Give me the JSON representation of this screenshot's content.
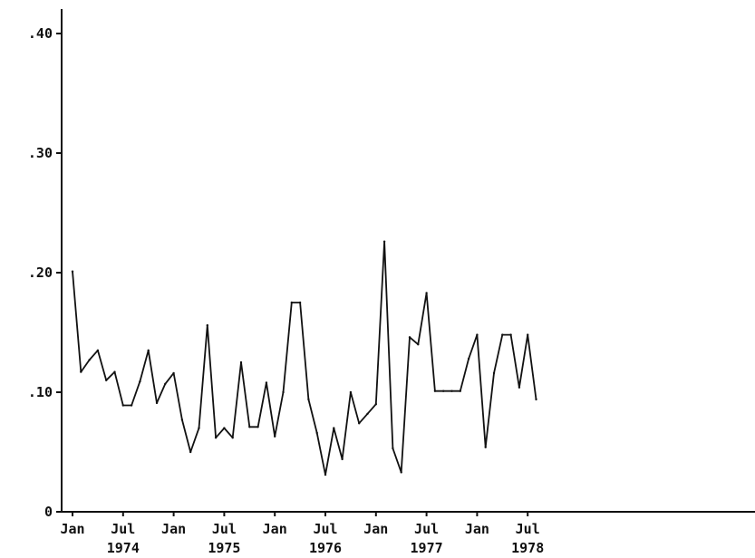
{
  "chart_data": {
    "type": "line",
    "title": "",
    "xlabel": "",
    "ylabel": "",
    "ylim": [
      0,
      0.42
    ],
    "grid": false,
    "legend": "none",
    "y_ticks": [
      {
        "value": 0,
        "label": "0"
      },
      {
        "value": 0.1,
        "label": ".10"
      },
      {
        "value": 0.2,
        "label": ".20"
      },
      {
        "value": 0.3,
        "label": ".30"
      },
      {
        "value": 0.4,
        "label": ".40"
      }
    ],
    "x_ticks": [
      {
        "x": "1974-01",
        "label": "Jan",
        "year": ""
      },
      {
        "x": "1974-07",
        "label": "Jul",
        "year": "1974"
      },
      {
        "x": "1975-01",
        "label": "Jan",
        "year": ""
      },
      {
        "x": "1975-07",
        "label": "Jul",
        "year": "1975"
      },
      {
        "x": "1976-01",
        "label": "Jan",
        "year": ""
      },
      {
        "x": "1976-07",
        "label": "Jul",
        "year": "1976"
      },
      {
        "x": "1977-01",
        "label": "Jan",
        "year": ""
      },
      {
        "x": "1977-07",
        "label": "Jul",
        "year": "1977"
      },
      {
        "x": "1978-01",
        "label": "Jan",
        "year": ""
      },
      {
        "x": "1978-07",
        "label": "Jul",
        "year": "1978"
      }
    ],
    "x": [
      "1974-01",
      "1974-02",
      "1974-03",
      "1974-04",
      "1974-05",
      "1974-06",
      "1974-07",
      "1974-08",
      "1974-09",
      "1974-10",
      "1974-11",
      "1974-12",
      "1975-01",
      "1975-02",
      "1975-03",
      "1975-04",
      "1975-05",
      "1975-06",
      "1975-07",
      "1975-08",
      "1975-09",
      "1975-10",
      "1975-11",
      "1975-12",
      "1976-01",
      "1976-02",
      "1976-03",
      "1976-04",
      "1976-05",
      "1976-06",
      "1976-07",
      "1976-08",
      "1976-09",
      "1976-10",
      "1976-11",
      "1976-12",
      "1977-01",
      "1977-02",
      "1977-03",
      "1977-04",
      "1977-05",
      "1977-06",
      "1977-07",
      "1977-08",
      "1977-09",
      "1977-10",
      "1977-11",
      "1977-12",
      "1978-01",
      "1978-02",
      "1978-03",
      "1978-04",
      "1978-05",
      "1978-06",
      "1978-07",
      "1978-08"
    ],
    "values": [
      0.201,
      0.117,
      0.127,
      0.135,
      0.11,
      0.117,
      0.089,
      0.089,
      0.109,
      0.135,
      0.091,
      0.107,
      0.116,
      0.077,
      0.05,
      0.07,
      0.156,
      0.062,
      0.07,
      0.062,
      0.125,
      0.071,
      0.071,
      0.108,
      0.063,
      0.1,
      0.175,
      0.175,
      0.094,
      0.066,
      0.031,
      0.07,
      0.044,
      0.1,
      0.074,
      0.082,
      0.09,
      0.226,
      0.053,
      0.033,
      0.146,
      0.14,
      0.183,
      0.101,
      0.101,
      0.101,
      0.101,
      0.128,
      0.148,
      0.054,
      0.116,
      0.148,
      0.148,
      0.104,
      0.148,
      0.094
    ]
  }
}
